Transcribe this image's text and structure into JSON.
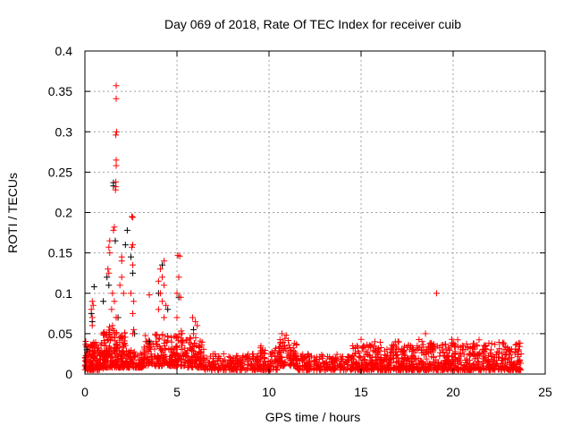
{
  "chart_data": {
    "type": "scatter",
    "title": "Day 069 of 2018, Rate Of TEC Index for receiver cuib",
    "xlabel": "GPS time / hours",
    "ylabel": "ROTI / TECUs",
    "xlim": [
      0,
      25
    ],
    "ylim": [
      0,
      0.4
    ],
    "xticks": [
      0,
      5,
      10,
      15,
      20,
      25
    ],
    "xtick_labels": [
      "0",
      "5",
      "10",
      "15",
      "20",
      "25"
    ],
    "yticks": [
      0,
      0.05,
      0.1,
      0.15,
      0.2,
      0.25,
      0.3,
      0.35,
      0.4
    ],
    "ytick_labels": [
      "0",
      "0.05",
      "0.1",
      "0.15",
      "0.2",
      "0.25",
      "0.3",
      "0.35",
      "0.4"
    ],
    "grid": true,
    "legend": "none",
    "marker": "plus",
    "series": [
      {
        "name": "black",
        "color": "#000000",
        "points": [
          [
            1.55,
            0.237
          ],
          [
            1.55,
            0.233
          ],
          [
            1.65,
            0.165
          ],
          [
            0.5,
            0.108
          ],
          [
            2.3,
            0.178
          ],
          [
            2.5,
            0.145
          ],
          [
            2.2,
            0.16
          ],
          [
            1.2,
            0.12
          ],
          [
            1.0,
            0.09
          ],
          [
            0.35,
            0.075
          ],
          [
            0.4,
            0.065
          ],
          [
            3.5,
            0.04
          ],
          [
            4.2,
            0.135
          ],
          [
            4.0,
            0.1
          ],
          [
            4.5,
            0.08
          ],
          [
            5.1,
            0.095
          ],
          [
            5.9,
            0.055
          ],
          [
            2.6,
            0.125
          ],
          [
            1.8,
            0.07
          ],
          [
            0.1,
            0.03
          ],
          [
            1.3,
            0.11
          ],
          [
            2.7,
            0.05
          ]
        ]
      },
      {
        "name": "red",
        "color": "#ff0000",
        "points": [
          [
            1.7,
            0.357
          ],
          [
            1.7,
            0.341
          ],
          [
            1.72,
            0.3
          ],
          [
            1.68,
            0.296
          ],
          [
            1.7,
            0.265
          ],
          [
            1.7,
            0.258
          ],
          [
            1.68,
            0.238
          ],
          [
            1.68,
            0.232
          ],
          [
            1.66,
            0.228
          ],
          [
            1.6,
            0.182
          ],
          [
            1.55,
            0.178
          ],
          [
            1.35,
            0.165
          ],
          [
            1.3,
            0.157
          ],
          [
            1.35,
            0.15
          ],
          [
            1.25,
            0.13
          ],
          [
            1.3,
            0.125
          ],
          [
            2.55,
            0.195
          ],
          [
            2.6,
            0.194
          ],
          [
            2.6,
            0.16
          ],
          [
            2.55,
            0.157
          ],
          [
            2.6,
            0.135
          ],
          [
            2.5,
            0.1
          ],
          [
            2.65,
            0.09
          ],
          [
            2.6,
            0.075
          ],
          [
            2.65,
            0.055
          ],
          [
            2.6,
            0.05
          ],
          [
            2.0,
            0.145
          ],
          [
            2.0,
            0.14
          ],
          [
            2.0,
            0.12
          ],
          [
            1.9,
            0.11
          ],
          [
            2.1,
            0.1
          ],
          [
            0.4,
            0.09
          ],
          [
            0.45,
            0.085
          ],
          [
            0.35,
            0.08
          ],
          [
            0.4,
            0.07
          ],
          [
            0.4,
            0.06
          ],
          [
            4.3,
            0.14
          ],
          [
            4.1,
            0.13
          ],
          [
            4.2,
            0.12
          ],
          [
            4.0,
            0.115
          ],
          [
            4.3,
            0.11
          ],
          [
            4.1,
            0.1
          ],
          [
            4.2,
            0.09
          ],
          [
            4.4,
            0.085
          ],
          [
            4.0,
            0.08
          ],
          [
            4.3,
            0.07
          ],
          [
            5.05,
            0.147
          ],
          [
            5.15,
            0.146
          ],
          [
            5.1,
            0.12
          ],
          [
            5.0,
            0.1
          ],
          [
            5.2,
            0.095
          ],
          [
            5.0,
            0.07
          ],
          [
            5.85,
            0.07
          ],
          [
            6.0,
            0.065
          ],
          [
            6.1,
            0.06
          ],
          [
            5.9,
            0.05
          ],
          [
            3.5,
            0.098
          ],
          [
            1.5,
            0.1
          ],
          [
            1.6,
            0.09
          ],
          [
            1.45,
            0.08
          ],
          [
            1.7,
            0.07
          ],
          [
            1.5,
            0.06
          ],
          [
            1.6,
            0.05
          ],
          [
            19.1,
            0.1
          ],
          [
            18.5,
            0.05
          ],
          [
            10.7,
            0.05
          ],
          [
            15.0,
            0.043
          ]
        ]
      }
    ],
    "baseline_bands": [
      {
        "from": 0,
        "to": 1,
        "low": 0.005,
        "high": 0.045,
        "count": 160
      },
      {
        "from": 1,
        "to": 2.2,
        "low": 0.008,
        "high": 0.06,
        "count": 180
      },
      {
        "from": 2.2,
        "to": 3.2,
        "low": 0.008,
        "high": 0.03,
        "count": 100
      },
      {
        "from": 3.2,
        "to": 5.5,
        "low": 0.01,
        "high": 0.055,
        "count": 220
      },
      {
        "from": 5.5,
        "to": 6.5,
        "low": 0.008,
        "high": 0.045,
        "count": 100
      },
      {
        "from": 6.5,
        "to": 9.5,
        "low": 0.005,
        "high": 0.025,
        "count": 200
      },
      {
        "from": 9.5,
        "to": 10.5,
        "low": 0.005,
        "high": 0.035,
        "count": 80
      },
      {
        "from": 10.5,
        "to": 11.5,
        "low": 0.01,
        "high": 0.048,
        "count": 90
      },
      {
        "from": 11.5,
        "to": 14.5,
        "low": 0.005,
        "high": 0.025,
        "count": 200
      },
      {
        "from": 14.5,
        "to": 15.5,
        "low": 0.005,
        "high": 0.04,
        "count": 90
      },
      {
        "from": 15.5,
        "to": 18,
        "low": 0.005,
        "high": 0.04,
        "count": 260
      },
      {
        "from": 18,
        "to": 23.7,
        "low": 0.005,
        "high": 0.043,
        "count": 520
      }
    ]
  }
}
